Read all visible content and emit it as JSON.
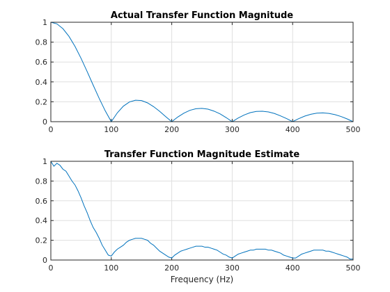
{
  "chart_data": [
    {
      "type": "line",
      "title": "Actual Transfer Function Magnitude",
      "xlabel": "",
      "ylabel": "",
      "xlim": [
        0,
        500
      ],
      "ylim": [
        0,
        1
      ],
      "x_ticks": [
        "0",
        "100",
        "200",
        "300",
        "400",
        "500"
      ],
      "y_ticks": [
        "0",
        "0.2",
        "0.4",
        "0.6",
        "0.8",
        "1"
      ],
      "grid": true,
      "series": [
        {
          "color": "#0072bd",
          "x": [
            0,
            10,
            20,
            30,
            40,
            50,
            60,
            70,
            80,
            90,
            100,
            110,
            120,
            130,
            140,
            150,
            160,
            170,
            180,
            190,
            200,
            210,
            220,
            230,
            240,
            250,
            260,
            270,
            280,
            290,
            300,
            310,
            320,
            330,
            340,
            350,
            360,
            370,
            380,
            390,
            400,
            410,
            420,
            430,
            440,
            450,
            460,
            470,
            480,
            490,
            500
          ],
          "y": [
            1.0,
            0.984,
            0.935,
            0.858,
            0.757,
            0.637,
            0.505,
            0.368,
            0.234,
            0.109,
            0.0,
            0.089,
            0.156,
            0.198,
            0.216,
            0.212,
            0.189,
            0.151,
            0.104,
            0.051,
            0.0,
            0.047,
            0.085,
            0.114,
            0.13,
            0.134,
            0.126,
            0.106,
            0.078,
            0.041,
            0.0,
            0.037,
            0.068,
            0.091,
            0.103,
            0.105,
            0.098,
            0.082,
            0.058,
            0.031,
            0.0,
            0.03,
            0.056,
            0.074,
            0.086,
            0.088,
            0.083,
            0.071,
            0.052,
            0.028,
            0.0
          ]
        }
      ]
    },
    {
      "type": "line",
      "title": "Transfer Function Magnitude Estimate",
      "xlabel": "Frequency (Hz)",
      "ylabel": "",
      "xlim": [
        0,
        500
      ],
      "ylim": [
        0,
        1
      ],
      "x_ticks": [
        "0",
        "100",
        "200",
        "300",
        "400",
        "500"
      ],
      "y_ticks": [
        "0",
        "0.2",
        "0.4",
        "0.6",
        "0.8",
        "1"
      ],
      "grid": true,
      "series": [
        {
          "color": "#0072bd",
          "x": [
            0,
            5,
            10,
            15,
            20,
            25,
            30,
            35,
            40,
            45,
            50,
            55,
            60,
            65,
            70,
            75,
            80,
            85,
            90,
            95,
            100,
            105,
            110,
            115,
            120,
            125,
            130,
            135,
            140,
            145,
            150,
            155,
            160,
            165,
            170,
            175,
            180,
            185,
            190,
            195,
            200,
            205,
            210,
            215,
            220,
            225,
            230,
            235,
            240,
            245,
            250,
            255,
            260,
            265,
            270,
            275,
            280,
            285,
            290,
            295,
            300,
            305,
            310,
            315,
            320,
            325,
            330,
            335,
            340,
            345,
            350,
            355,
            360,
            365,
            370,
            375,
            380,
            385,
            390,
            395,
            400,
            405,
            410,
            415,
            420,
            425,
            430,
            435,
            440,
            445,
            450,
            455,
            460,
            465,
            470,
            475,
            480,
            485,
            490,
            495,
            500
          ],
          "y": [
            1.0,
            0.95,
            0.98,
            0.96,
            0.92,
            0.9,
            0.85,
            0.8,
            0.76,
            0.7,
            0.63,
            0.55,
            0.48,
            0.4,
            0.33,
            0.28,
            0.22,
            0.15,
            0.1,
            0.05,
            0.04,
            0.08,
            0.11,
            0.13,
            0.15,
            0.18,
            0.2,
            0.21,
            0.22,
            0.22,
            0.22,
            0.21,
            0.2,
            0.17,
            0.15,
            0.12,
            0.09,
            0.07,
            0.05,
            0.03,
            0.02,
            0.05,
            0.07,
            0.09,
            0.1,
            0.11,
            0.12,
            0.13,
            0.14,
            0.14,
            0.14,
            0.13,
            0.13,
            0.12,
            0.11,
            0.1,
            0.08,
            0.06,
            0.05,
            0.03,
            0.02,
            0.04,
            0.06,
            0.07,
            0.08,
            0.09,
            0.1,
            0.1,
            0.11,
            0.11,
            0.11,
            0.11,
            0.1,
            0.1,
            0.09,
            0.08,
            0.07,
            0.05,
            0.04,
            0.03,
            0.02,
            0.02,
            0.04,
            0.06,
            0.07,
            0.08,
            0.09,
            0.1,
            0.1,
            0.1,
            0.1,
            0.09,
            0.09,
            0.08,
            0.07,
            0.06,
            0.05,
            0.04,
            0.03,
            0.01,
            0.01
          ]
        }
      ]
    }
  ]
}
